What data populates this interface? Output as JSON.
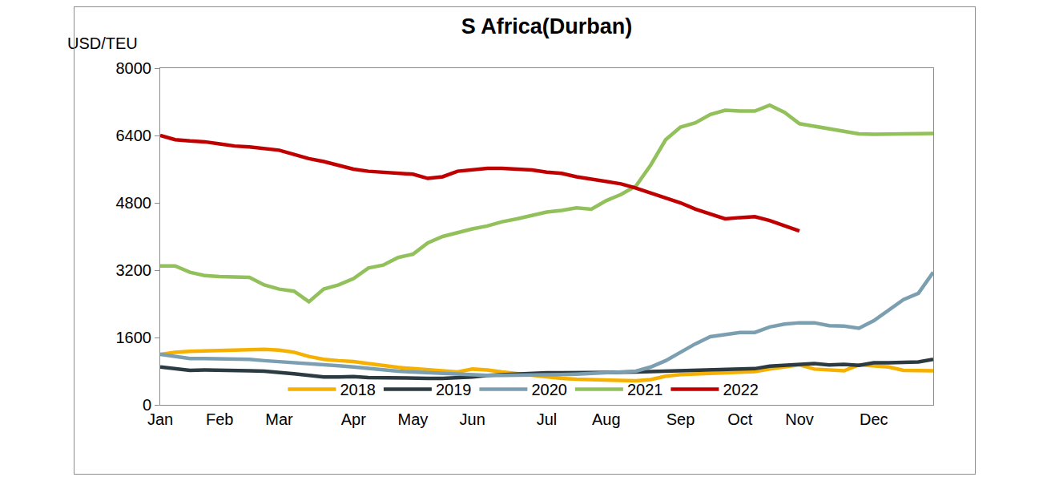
{
  "chart_data": {
    "type": "line",
    "title": "S Africa(Durban)",
    "y_label": "USD/TEU",
    "categories": [
      "Jan",
      null,
      null,
      null,
      "Feb",
      null,
      null,
      null,
      "Mar",
      null,
      null,
      null,
      null,
      "Apr",
      null,
      null,
      null,
      "May",
      null,
      null,
      null,
      "Jun",
      null,
      null,
      null,
      null,
      "Jul",
      null,
      null,
      null,
      "Aug",
      null,
      null,
      null,
      null,
      "Sep",
      null,
      null,
      null,
      "Oct",
      null,
      null,
      null,
      "Nov",
      null,
      null,
      null,
      null,
      "Dec",
      null,
      null,
      null,
      null
    ],
    "series": [
      {
        "name": "2018",
        "color": "#f6b100",
        "values": [
          1200,
          1250,
          1270,
          1280,
          1300,
          1310,
          1320,
          1320,
          1300,
          1250,
          1150,
          1080,
          1050,
          1030,
          980,
          930,
          890,
          860,
          830,
          800,
          780,
          850,
          830,
          780,
          740,
          700,
          660,
          630,
          610,
          600,
          580,
          560,
          570,
          600,
          680,
          720,
          730,
          740,
          760,
          780,
          790,
          850,
          900,
          950,
          850,
          820,
          810,
          950,
          920,
          900,
          820,
          810,
          810
        ]
      },
      {
        "name": "2019",
        "color": "#2c3a42",
        "values": [
          900,
          850,
          820,
          830,
          830,
          820,
          810,
          800,
          780,
          740,
          700,
          660,
          660,
          670,
          650,
          640,
          640,
          640,
          630,
          630,
          640,
          660,
          700,
          720,
          740,
          750,
          760,
          760,
          760,
          770,
          780,
          780,
          780,
          790,
          800,
          800,
          800,
          810,
          830,
          850,
          860,
          920,
          940,
          960,
          980,
          950,
          960,
          940,
          1000,
          1000,
          1000,
          1020,
          1080
        ]
      },
      {
        "name": "2020",
        "color": "#7b9fb1",
        "values": [
          1200,
          1150,
          1100,
          1100,
          1100,
          1100,
          1080,
          1050,
          1030,
          1000,
          980,
          950,
          930,
          900,
          860,
          830,
          800,
          780,
          760,
          740,
          720,
          700,
          700,
          700,
          700,
          700,
          710,
          720,
          730,
          740,
          760,
          780,
          800,
          900,
          1050,
          1250,
          1450,
          1620,
          1680,
          1720,
          1720,
          1850,
          1920,
          1950,
          1950,
          1880,
          1870,
          1820,
          2000,
          2250,
          2500,
          2650,
          3150
        ]
      },
      {
        "name": "2021",
        "color": "#92c05a",
        "values": [
          3300,
          3300,
          3150,
          3070,
          3050,
          3040,
          3030,
          2850,
          2750,
          2700,
          2450,
          2750,
          2850,
          3000,
          3250,
          3320,
          3500,
          3580,
          3850,
          4000,
          4100,
          4180,
          4250,
          4350,
          4420,
          4500,
          4580,
          4620,
          4680,
          4650,
          4850,
          5000,
          5200,
          5700,
          6300,
          6600,
          6700,
          6900,
          7000,
          6980,
          6980,
          7120,
          6950,
          6680,
          6620,
          6540,
          6480,
          6440,
          6430,
          6430,
          6450,
          6450,
          6450
        ]
      },
      {
        "name": "2022",
        "color": "#c00000",
        "values": [
          6400,
          6300,
          6270,
          6250,
          6200,
          6150,
          6130,
          6100,
          6050,
          5950,
          5850,
          5780,
          5680,
          5600,
          5550,
          5520,
          5500,
          5480,
          5380,
          5420,
          5550,
          5580,
          5620,
          5620,
          5600,
          5580,
          5530,
          5500,
          5420,
          5370,
          5300,
          5250,
          5150,
          5030,
          4930,
          4800,
          4650,
          4530,
          4420,
          4450,
          4470,
          4380,
          4250,
          4130,
          null,
          null,
          null,
          null,
          null,
          null,
          null,
          null,
          null
        ]
      }
    ],
    "ylim": [
      0,
      8000
    ],
    "yticks": [
      0,
      1600,
      3200,
      4800,
      6400,
      8000
    ],
    "grid": false,
    "legend": "bottom"
  }
}
